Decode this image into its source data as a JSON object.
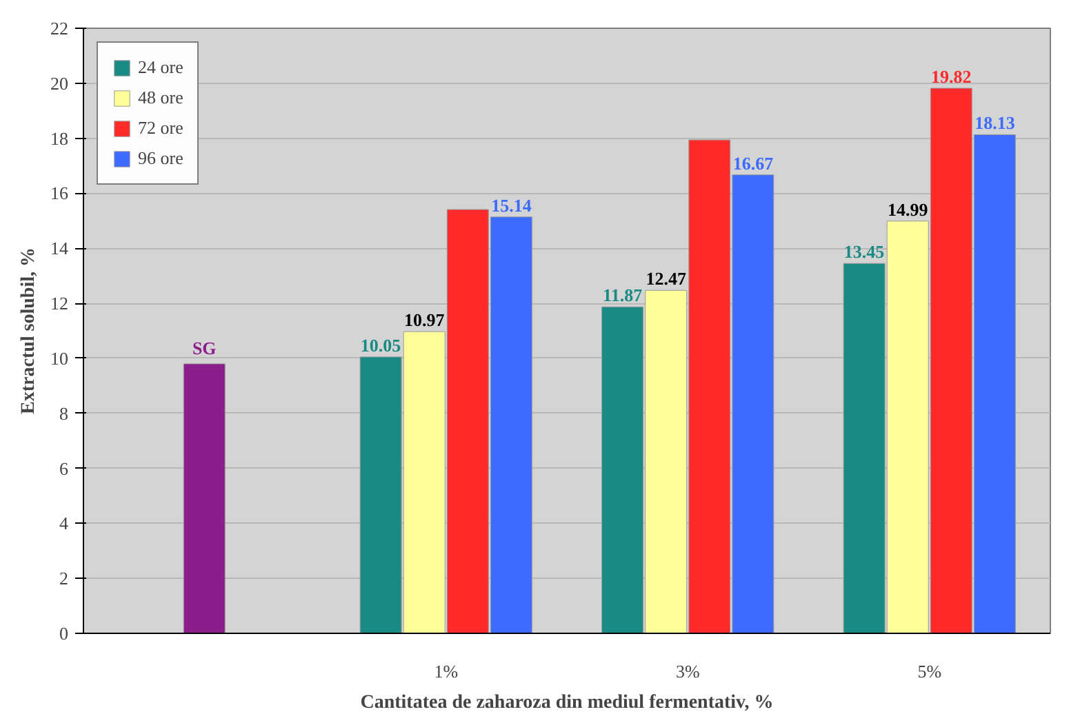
{
  "chart_data": {
    "type": "bar",
    "xlabel": "Cantitatea de zaharoza din mediul fermentativ, %",
    "ylabel": "Extractul solubil, %",
    "categories": [
      null,
      "1%",
      "3%",
      "5%"
    ],
    "ylim": [
      0,
      22
    ],
    "yticks": [
      0,
      2,
      4,
      6,
      8,
      10,
      12,
      14,
      16,
      18,
      20,
      22
    ],
    "grid": "y",
    "legend": "top left",
    "series": [
      {
        "color": "#8b1e8a",
        "values": [
          9.8,
          null,
          null,
          null
        ],
        "value_labels": [
          "SG",
          null,
          null,
          null
        ]
      },
      {
        "name": "24 ore",
        "color": "#1a8a84",
        "values": [
          null,
          10.05,
          11.87,
          13.45
        ],
        "value_labels": [
          null,
          "10.05",
          "11.87",
          "13.45"
        ]
      },
      {
        "name": "48 ore",
        "color": "#ffff99",
        "values": [
          null,
          10.97,
          12.47,
          14.99
        ],
        "value_labels": [
          null,
          "10.97",
          "12.47",
          "14.99"
        ]
      },
      {
        "name": "72 ore",
        "color": "#ff2a2a",
        "values": [
          null,
          15.41,
          17.94,
          19.82
        ],
        "value_labels": [
          null,
          null,
          null,
          "19.82"
        ]
      },
      {
        "name": "96 ore",
        "color": "#3d6bff",
        "values": [
          null,
          15.14,
          16.67,
          18.13
        ],
        "value_labels": [
          null,
          "15.14",
          "16.67",
          "18.13"
        ]
      }
    ]
  }
}
